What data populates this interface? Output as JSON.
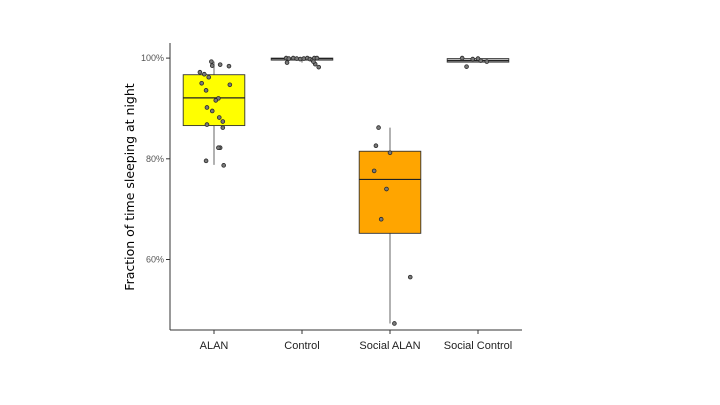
{
  "chart_data": {
    "type": "box",
    "title": "",
    "ylabel": "Fraction of time sleeping at night",
    "xlabel": "",
    "ylim": [
      0.46,
      1.03
    ],
    "yticks": [
      {
        "value": 0.6,
        "label": "60%"
      },
      {
        "value": 0.8,
        "label": "80%"
      },
      {
        "value": 1.0,
        "label": "100%"
      }
    ],
    "grid": false,
    "legend": "none",
    "groups": [
      {
        "name": "ALAN",
        "color": "#FFFF00",
        "q1": 0.866,
        "median": 0.921,
        "q3": 0.967,
        "whisker_low": 0.788,
        "whisker_high": 0.993,
        "points": [
          {
            "x": -0.32,
            "y": 0.972
          },
          {
            "x": -0.22,
            "y": 0.968
          },
          {
            "x": -0.12,
            "y": 0.962
          },
          {
            "x": -0.28,
            "y": 0.95
          },
          {
            "x": -0.18,
            "y": 0.936
          },
          {
            "x": 0.1,
            "y": 0.92
          },
          {
            "x": -0.16,
            "y": 0.902
          },
          {
            "x": 0.04,
            "y": 0.916
          },
          {
            "x": -0.04,
            "y": 0.895
          },
          {
            "x": 0.12,
            "y": 0.882
          },
          {
            "x": 0.2,
            "y": 0.874
          },
          {
            "x": -0.16,
            "y": 0.868
          },
          {
            "x": 0.2,
            "y": 0.862
          },
          {
            "x": 0.14,
            "y": 0.822
          },
          {
            "x": 0.1,
            "y": 0.822
          },
          {
            "x": -0.18,
            "y": 0.796
          },
          {
            "x": 0.22,
            "y": 0.787
          },
          {
            "x": -0.06,
            "y": 0.993
          },
          {
            "x": -0.04,
            "y": 0.985
          },
          {
            "x": 0.14,
            "y": 0.987
          },
          {
            "x": 0.34,
            "y": 0.984
          },
          {
            "x": 0.36,
            "y": 0.947
          }
        ]
      },
      {
        "name": "Control",
        "color": "#BDBDBD",
        "q1": 0.996,
        "median": 0.999,
        "q3": 1.0,
        "whisker_low": 0.991,
        "whisker_high": 1.0,
        "points": [
          {
            "x": -0.36,
            "y": 1.0
          },
          {
            "x": -0.3,
            "y": 0.999
          },
          {
            "x": -0.34,
            "y": 0.991
          },
          {
            "x": -0.2,
            "y": 1.0
          },
          {
            "x": -0.12,
            "y": 0.999
          },
          {
            "x": -0.04,
            "y": 0.998
          },
          {
            "x": 0.04,
            "y": 0.999
          },
          {
            "x": 0.12,
            "y": 1.0
          },
          {
            "x": 0.18,
            "y": 0.998
          },
          {
            "x": 0.24,
            "y": 0.996
          },
          {
            "x": 0.28,
            "y": 1.0
          },
          {
            "x": 0.34,
            "y": 1.0
          },
          {
            "x": 0.3,
            "y": 0.988
          },
          {
            "x": 0.38,
            "y": 0.982
          },
          {
            "x": 0.26,
            "y": 0.993
          }
        ]
      },
      {
        "name": "Social ALAN",
        "color": "#FFA500",
        "q1": 0.652,
        "median": 0.759,
        "q3": 0.815,
        "whisker_low": 0.473,
        "whisker_high": 0.862,
        "points": [
          {
            "x": -0.26,
            "y": 0.862
          },
          {
            "x": -0.32,
            "y": 0.826
          },
          {
            "x": 0.0,
            "y": 0.812
          },
          {
            "x": -0.36,
            "y": 0.776
          },
          {
            "x": -0.08,
            "y": 0.74
          },
          {
            "x": -0.2,
            "y": 0.68
          },
          {
            "x": 0.1,
            "y": 0.473
          },
          {
            "x": 0.46,
            "y": 0.565
          }
        ]
      },
      {
        "name": "Social Control",
        "color": "#BDBDBD",
        "q1": 0.992,
        "median": 0.995,
        "q3": 0.999,
        "whisker_low": 0.992,
        "whisker_high": 0.999,
        "points": [
          {
            "x": -0.36,
            "y": 1.0
          },
          {
            "x": -0.26,
            "y": 0.983
          },
          {
            "x": -0.12,
            "y": 0.998
          },
          {
            "x": 0.06,
            "y": 0.995
          },
          {
            "x": 0.2,
            "y": 0.993
          },
          {
            "x": 0.0,
            "y": 0.999
          }
        ]
      }
    ]
  }
}
